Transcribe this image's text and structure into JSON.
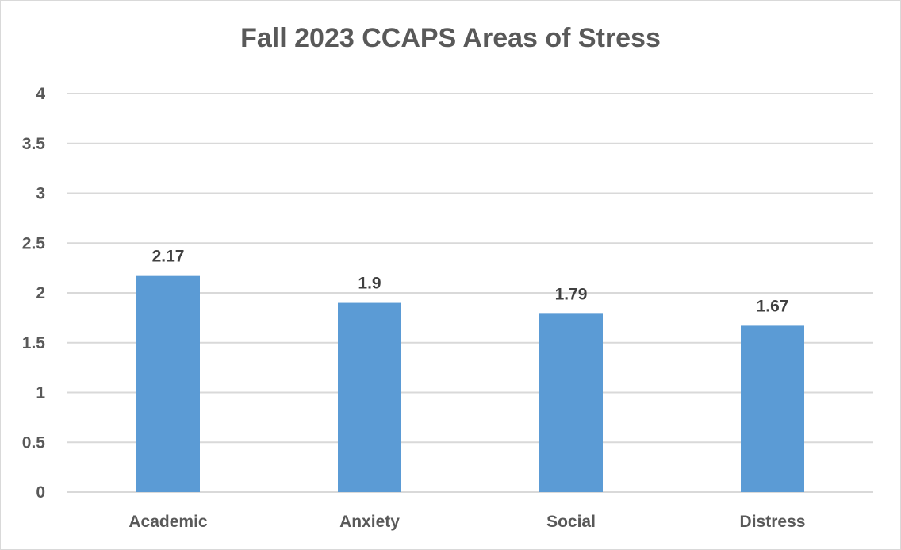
{
  "chart_data": {
    "type": "bar",
    "title": "Fall 2023 CCAPS Areas of Stress",
    "categories": [
      "Academic",
      "Anxiety",
      "Social",
      "Distress"
    ],
    "values": [
      2.17,
      1.9,
      1.79,
      1.67
    ],
    "data_labels": [
      "2.17",
      "1.9",
      "1.79",
      "1.67"
    ],
    "ylim": [
      0,
      4
    ],
    "yticks": [
      "0",
      "0.5",
      "1",
      "1.5",
      "2",
      "2.5",
      "3",
      "3.5",
      "4"
    ],
    "xlabel": "",
    "ylabel": "",
    "grid": true,
    "legend": "none",
    "bar_color": "#5b9bd5",
    "grid_color": "#d9d9d9"
  }
}
